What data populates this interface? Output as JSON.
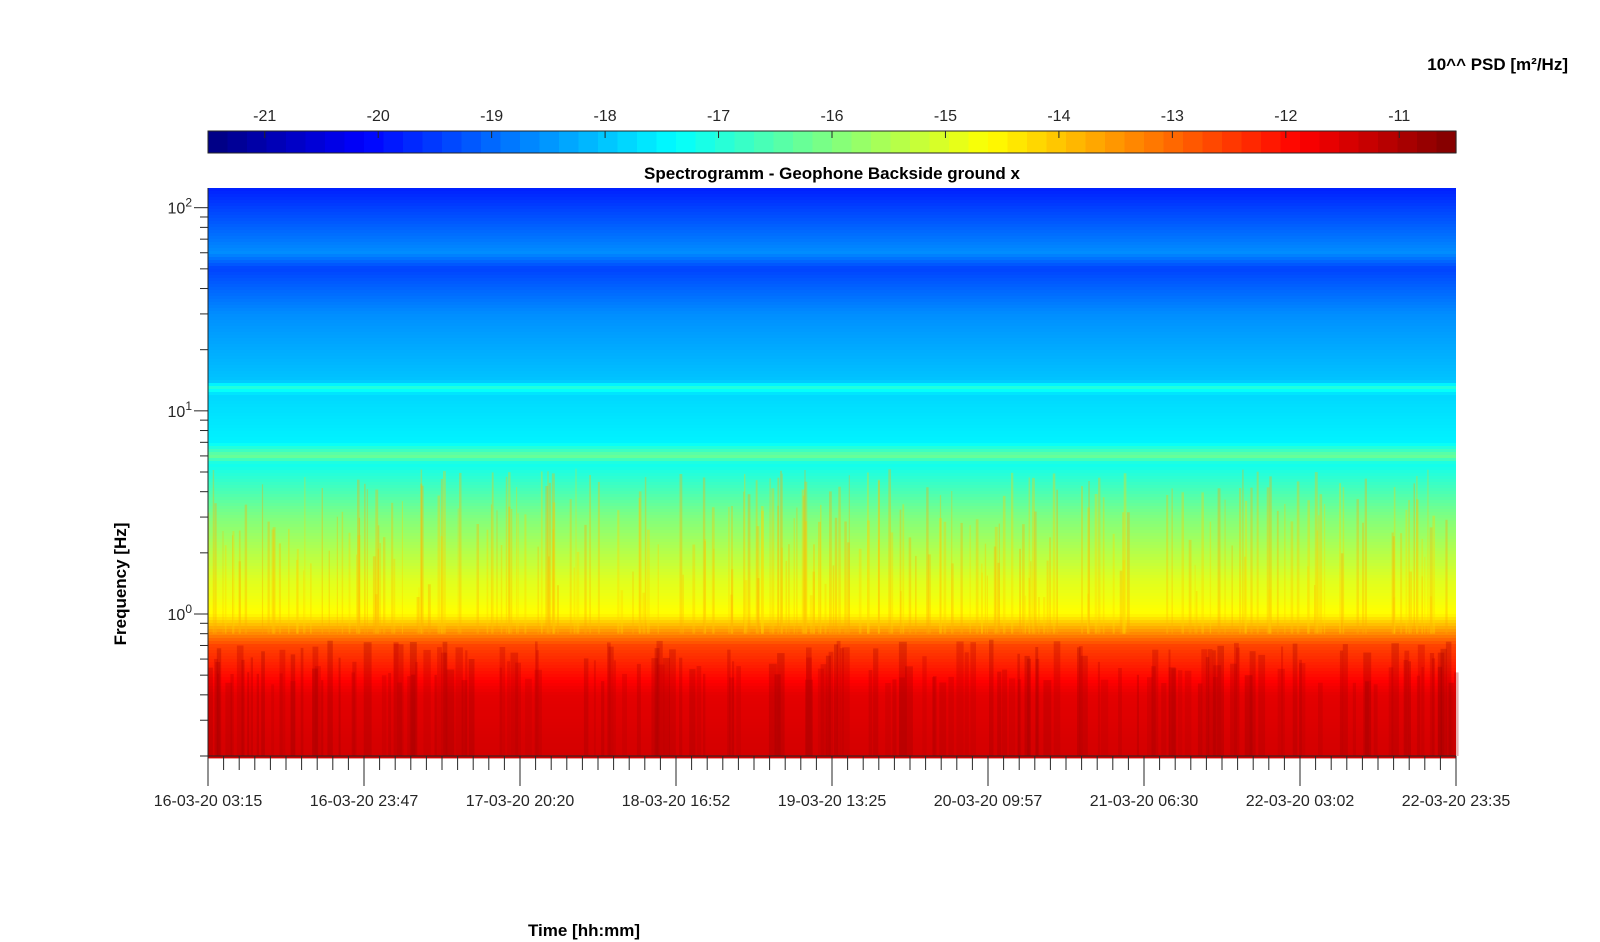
{
  "chart_data": {
    "type": "heatmap",
    "title": "Spectrogramm - Geophone Backside ground x",
    "xlabel": "Time [hh:mm]",
    "ylabel": "Frequency [Hz]",
    "colorbar_label": "10^^ PSD [m²/Hz]",
    "x_ticks": [
      "16-03-20 03:15",
      "16-03-20 23:47",
      "17-03-20 20:20",
      "18-03-20 16:52",
      "19-03-20 13:25",
      "20-03-20 09:57",
      "21-03-20 06:30",
      "22-03-20 03:02",
      "22-03-20 23:35"
    ],
    "y_scale": "log",
    "y_range_hz": [
      0.2,
      125
    ],
    "y_ticks": [
      {
        "base": "10",
        "exp": "0",
        "value": 1
      },
      {
        "base": "10",
        "exp": "1",
        "value": 10
      },
      {
        "base": "10",
        "exp": "2",
        "value": 100
      }
    ],
    "color_range": [
      -21.5,
      -10.5
    ],
    "color_ticks": [
      "-21",
      "-20",
      "-19",
      "-18",
      "-17",
      "-16",
      "-15",
      "-14",
      "-13",
      "-12",
      "-11"
    ],
    "colormap": "jet",
    "colormap_levels": 64,
    "grid": false,
    "colorbar_placement": "top",
    "log_psd_profile": [
      {
        "f": 0.2,
        "v": -11.4
      },
      {
        "f": 0.4,
        "v": -11.6
      },
      {
        "f": 0.7,
        "v": -12.6
      },
      {
        "f": 1.0,
        "v": -14.6
      },
      {
        "f": 1.5,
        "v": -15.0
      },
      {
        "f": 3.0,
        "v": -16.0
      },
      {
        "f": 5.5,
        "v": -17.2
      },
      {
        "f": 6.0,
        "v": -16.2
      },
      {
        "f": 7.0,
        "v": -17.5
      },
      {
        "f": 12.0,
        "v": -17.8
      },
      {
        "f": 13.0,
        "v": -17.0
      },
      {
        "f": 14.0,
        "v": -18.0
      },
      {
        "f": 30.0,
        "v": -18.6
      },
      {
        "f": 50.0,
        "v": -19.4
      },
      {
        "f": 60.0,
        "v": -18.6
      },
      {
        "f": 125.0,
        "v": -19.8
      }
    ]
  }
}
